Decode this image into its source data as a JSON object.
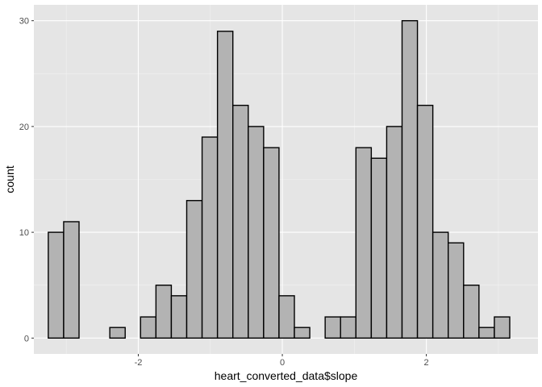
{
  "chart_data": {
    "type": "bar",
    "subtype": "histogram",
    "xlabel": "heart_converted_data$slope",
    "ylabel": "count",
    "xlim": [
      -3.45,
      3.55
    ],
    "ylim": [
      -1.5,
      31.5
    ],
    "x_ticks": [
      -2,
      0,
      2
    ],
    "x_tick_labels": [
      "-2",
      "0",
      "2"
    ],
    "y_ticks": [
      0,
      10,
      20,
      30
    ],
    "y_tick_labels": [
      "0",
      "10",
      "20",
      "30"
    ],
    "grid": true,
    "legend": "none",
    "bin_start": -3.25,
    "bin_width": 0.2136,
    "counts": [
      10,
      11,
      0,
      0,
      1,
      0,
      2,
      5,
      4,
      13,
      19,
      29,
      22,
      20,
      18,
      4,
      1,
      0,
      2,
      2,
      18,
      17,
      20,
      30,
      22,
      10,
      9,
      5,
      1,
      2
    ]
  },
  "colors": {
    "panel": "#e5e5e5",
    "grid_major": "#ffffff",
    "bar_fill": "#b3b3b3",
    "bar_stroke": "#000000",
    "tick_text": "#4d4d4d"
  }
}
